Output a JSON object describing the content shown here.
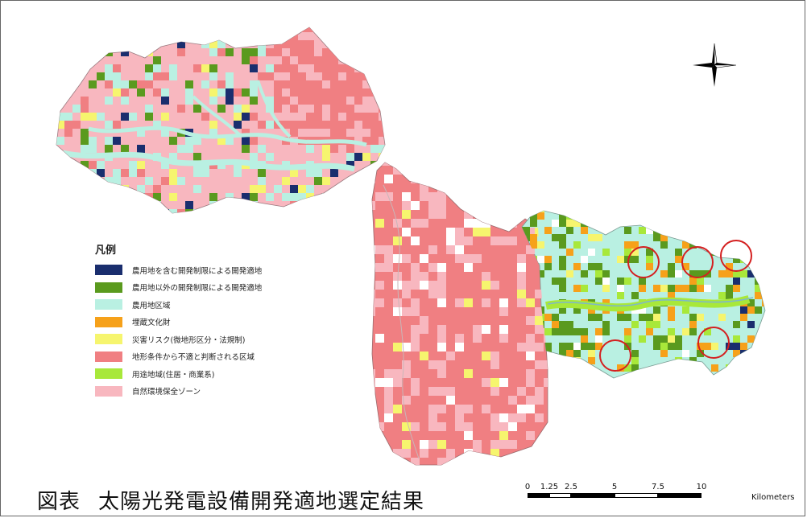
{
  "legend": {
    "title": "凡例",
    "items": [
      {
        "label": "農用地を含む開発制限による開発適地",
        "color": "#1a2e6e"
      },
      {
        "label": "農用地以外の開発制限による開発適地",
        "color": "#5a9a1e"
      },
      {
        "label": "農用地区域",
        "color": "#b9f0e2"
      },
      {
        "label": "埋蔵文化財",
        "color": "#f6a11a"
      },
      {
        "label": "災害リスク(微地形区分・法規制)",
        "color": "#f6f56e"
      },
      {
        "label": "地形条件から不適と判断される区域",
        "color": "#f07f82"
      },
      {
        "label": "用途地域(住居・商業系)",
        "color": "#a8e83a"
      },
      {
        "label": "自然環境保全ゾーン",
        "color": "#f8b7bf"
      }
    ]
  },
  "caption": {
    "prefix": "図表",
    "text": "太陽光発電設備開発適地選定結果"
  },
  "scale": {
    "ticks": [
      "0",
      "1.25",
      "2.5",
      "5",
      "7.5",
      "10"
    ],
    "unit": "Kilometers"
  },
  "highlight_color": "#d42020"
}
